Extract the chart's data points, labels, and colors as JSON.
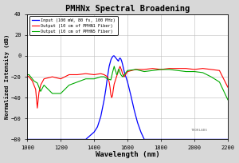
{
  "title": "PMHNx Spectral Broadening",
  "xlabel": "Wavelength (nm)",
  "ylabel": "Normalized Intensity (dB)",
  "xlim": [
    1000,
    2200
  ],
  "ylim": [
    -80,
    40
  ],
  "yticks": [
    -80,
    -60,
    -40,
    -20,
    0,
    20,
    40
  ],
  "xticks": [
    1000,
    1200,
    1400,
    1600,
    1800,
    2000,
    2200
  ],
  "fig_bg": "#d8d8d8",
  "plot_bg": "#ffffff",
  "legend_labels": [
    "Input (100 mW, 80 fs, 100 MHz)",
    "Output (10 cm of PMHN1 Fiber)",
    "Output (10 cm of PMHN5 Fiber)"
  ],
  "line_colors": [
    "#0000ff",
    "#ff0000",
    "#00aa00"
  ],
  "watermark": "THORLABS",
  "blue_x": [
    1000,
    1050,
    1100,
    1150,
    1200,
    1250,
    1300,
    1350,
    1400,
    1420,
    1440,
    1460,
    1470,
    1480,
    1490,
    1500,
    1505,
    1510,
    1515,
    1520,
    1525,
    1530,
    1535,
    1540,
    1545,
    1550,
    1555,
    1560,
    1565,
    1570,
    1580,
    1600,
    1620,
    1640,
    1660,
    1680,
    1700,
    1750,
    1800,
    1850,
    1900,
    2000,
    2100,
    2200
  ],
  "blue_y": [
    -80,
    -80,
    -80,
    -80,
    -80,
    -80,
    -80,
    -80,
    -73,
    -68,
    -58,
    -42,
    -32,
    -20,
    -10,
    -4,
    -2,
    -1,
    0,
    0,
    -1,
    -2,
    -3,
    -4,
    -5,
    -3,
    -2,
    -3,
    -5,
    -8,
    -15,
    -25,
    -38,
    -52,
    -64,
    -73,
    -80,
    -80,
    -80,
    -80,
    -80,
    -80,
    -80,
    -80
  ],
  "red_x": [
    1000,
    1010,
    1020,
    1030,
    1040,
    1050,
    1060,
    1070,
    1080,
    1100,
    1150,
    1200,
    1250,
    1300,
    1350,
    1400,
    1440,
    1460,
    1480,
    1490,
    1495,
    1500,
    1505,
    1510,
    1515,
    1520,
    1530,
    1540,
    1550,
    1555,
    1560,
    1565,
    1570,
    1580,
    1600,
    1650,
    1700,
    1750,
    1800,
    1850,
    1900,
    1950,
    2000,
    2050,
    2100,
    2150,
    2200
  ],
  "red_y": [
    -19,
    -20,
    -22,
    -24,
    -28,
    -32,
    -50,
    -35,
    -28,
    -22,
    -20,
    -22,
    -18,
    -18,
    -17,
    -18,
    -17,
    -18,
    -20,
    -25,
    -30,
    -37,
    -40,
    -38,
    -32,
    -27,
    -22,
    -17,
    -12,
    -10,
    -12,
    -14,
    -17,
    -20,
    -15,
    -13,
    -13,
    -12,
    -13,
    -12,
    -12,
    -12,
    -13,
    -12,
    -13,
    -14,
    -30
  ],
  "green_x": [
    1000,
    1010,
    1020,
    1030,
    1040,
    1060,
    1080,
    1100,
    1150,
    1200,
    1250,
    1300,
    1350,
    1400,
    1440,
    1460,
    1480,
    1500,
    1510,
    1515,
    1520,
    1525,
    1530,
    1535,
    1540,
    1545,
    1550,
    1555,
    1560,
    1570,
    1580,
    1600,
    1650,
    1700,
    1750,
    1800,
    1850,
    1900,
    1950,
    2000,
    2050,
    2100,
    2150,
    2200
  ],
  "green_y": [
    -18,
    -18,
    -20,
    -22,
    -24,
    -26,
    -34,
    -28,
    -36,
    -36,
    -28,
    -25,
    -22,
    -22,
    -20,
    -20,
    -22,
    -23,
    -16,
    -13,
    -10,
    -13,
    -15,
    -18,
    -17,
    -13,
    -13,
    -16,
    -18,
    -20,
    -18,
    -14,
    -13,
    -15,
    -14,
    -13,
    -13,
    -14,
    -15,
    -15,
    -16,
    -20,
    -25,
    -42
  ]
}
